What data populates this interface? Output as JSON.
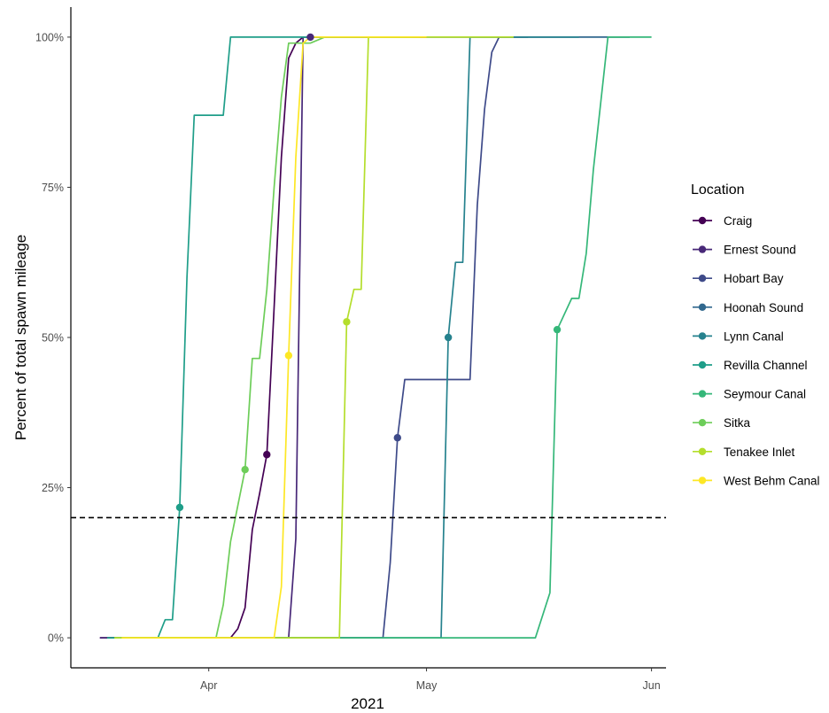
{
  "chart_data": {
    "type": "line",
    "title": "",
    "xlabel": "2021",
    "ylabel": "Percent of total spawn mileage",
    "x_ticks": [
      {
        "label": "Apr",
        "date": "2021-04-01"
      },
      {
        "label": "May",
        "date": "2021-05-01"
      },
      {
        "label": "Jun",
        "date": "2021-06-01"
      }
    ],
    "y_ticks": [
      {
        "label": "0%",
        "value": 0
      },
      {
        "label": "25%",
        "value": 25
      },
      {
        "label": "50%",
        "value": 50
      },
      {
        "label": "75%",
        "value": 75
      },
      {
        "label": "100%",
        "value": 100
      }
    ],
    "xlim": [
      "2021-03-13",
      "2021-06-03"
    ],
    "ylim": [
      -5,
      105
    ],
    "reference_line": {
      "y": 20,
      "style": "dashed",
      "color": "#000000"
    },
    "grid": false,
    "legend": {
      "title": "Location",
      "position": "right"
    },
    "series": [
      {
        "name": "Craig",
        "color": "#440154",
        "marker": {
          "x": "2021-04-09",
          "y": 30.5
        },
        "points": [
          [
            "2021-03-17",
            0
          ],
          [
            "2021-04-04",
            0
          ],
          [
            "2021-04-05",
            1.5
          ],
          [
            "2021-04-06",
            5
          ],
          [
            "2021-04-07",
            18
          ],
          [
            "2021-04-08",
            24
          ],
          [
            "2021-04-09",
            30.5
          ],
          [
            "2021-04-10",
            55
          ],
          [
            "2021-04-11",
            80
          ],
          [
            "2021-04-12",
            96.5
          ],
          [
            "2021-04-13",
            99
          ],
          [
            "2021-04-14",
            100
          ],
          [
            "2021-05-01",
            100
          ]
        ]
      },
      {
        "name": "Ernest Sound",
        "color": "#482878",
        "marker": {
          "x": "2021-04-15",
          "y": 100
        },
        "points": [
          [
            "2021-03-17",
            0
          ],
          [
            "2021-04-12",
            0
          ],
          [
            "2021-04-13",
            16.5
          ],
          [
            "2021-04-14",
            100
          ],
          [
            "2021-04-15",
            100
          ],
          [
            "2021-05-01",
            100
          ]
        ]
      },
      {
        "name": "Hobart Bay",
        "color": "#3E4A89",
        "marker": {
          "x": "2021-04-27",
          "y": 33.3
        },
        "points": [
          [
            "2021-03-20",
            0
          ],
          [
            "2021-04-25",
            0
          ],
          [
            "2021-04-26",
            12.5
          ],
          [
            "2021-04-27",
            33.3
          ],
          [
            "2021-04-28",
            43
          ],
          [
            "2021-05-07",
            43
          ],
          [
            "2021-05-08",
            72
          ],
          [
            "2021-05-09",
            88
          ],
          [
            "2021-05-10",
            97.5
          ],
          [
            "2021-05-11",
            100
          ],
          [
            "2021-05-15",
            100
          ]
        ]
      },
      {
        "name": "Hoonah Sound",
        "color": "#31688E",
        "marker": null,
        "points": [
          [
            "2021-04-27",
            100
          ],
          [
            "2021-05-29",
            100
          ]
        ]
      },
      {
        "name": "Lynn Canal",
        "color": "#26828E",
        "marker": {
          "x": "2021-05-04",
          "y": 50
        },
        "points": [
          [
            "2021-03-20",
            0
          ],
          [
            "2021-05-03",
            0
          ],
          [
            "2021-05-04",
            50
          ],
          [
            "2021-05-05",
            62.5
          ],
          [
            "2021-05-06",
            62.5
          ],
          [
            "2021-05-07",
            100
          ],
          [
            "2021-05-22",
            100
          ]
        ]
      },
      {
        "name": "Revilla Channel",
        "color": "#1F9E89",
        "marker": {
          "x": "2021-03-28",
          "y": 21.7
        },
        "points": [
          [
            "2021-03-18",
            0
          ],
          [
            "2021-03-25",
            0
          ],
          [
            "2021-03-26",
            3
          ],
          [
            "2021-03-27",
            3
          ],
          [
            "2021-03-28",
            21.7
          ],
          [
            "2021-03-29",
            60
          ],
          [
            "2021-03-30",
            87
          ],
          [
            "2021-04-03",
            87
          ],
          [
            "2021-04-04",
            100
          ],
          [
            "2021-04-29",
            100
          ]
        ]
      },
      {
        "name": "Seymour Canal",
        "color": "#35B779",
        "marker": {
          "x": "2021-05-19",
          "y": 51.3
        },
        "points": [
          [
            "2021-03-19",
            0
          ],
          [
            "2021-05-16",
            0
          ],
          [
            "2021-05-18",
            7.5
          ],
          [
            "2021-05-19",
            51.3
          ],
          [
            "2021-05-21",
            56.5
          ],
          [
            "2021-05-22",
            56.5
          ],
          [
            "2021-05-23",
            64
          ],
          [
            "2021-05-24",
            78
          ],
          [
            "2021-05-26",
            100
          ],
          [
            "2021-06-01",
            100
          ]
        ]
      },
      {
        "name": "Sitka",
        "color": "#6DCD59",
        "marker": {
          "x": "2021-04-06",
          "y": 28
        },
        "points": [
          [
            "2021-03-19",
            0
          ],
          [
            "2021-04-02",
            0
          ],
          [
            "2021-04-03",
            5.5
          ],
          [
            "2021-04-04",
            16
          ],
          [
            "2021-04-05",
            22
          ],
          [
            "2021-04-06",
            28
          ],
          [
            "2021-04-07",
            46.5
          ],
          [
            "2021-04-08",
            46.5
          ],
          [
            "2021-04-09",
            58
          ],
          [
            "2021-04-10",
            75
          ],
          [
            "2021-04-11",
            90
          ],
          [
            "2021-04-12",
            99
          ],
          [
            "2021-04-15",
            99
          ],
          [
            "2021-04-17",
            100
          ],
          [
            "2021-04-30",
            100
          ]
        ]
      },
      {
        "name": "Tenakee Inlet",
        "color": "#B4DE2C",
        "marker": {
          "x": "2021-04-20",
          "y": 52.6
        },
        "points": [
          [
            "2021-03-19",
            0
          ],
          [
            "2021-04-19",
            0
          ],
          [
            "2021-04-20",
            52.6
          ],
          [
            "2021-04-21",
            58
          ],
          [
            "2021-04-22",
            58
          ],
          [
            "2021-04-23",
            100
          ],
          [
            "2021-05-13",
            100
          ]
        ]
      },
      {
        "name": "West Behm Canal",
        "color": "#FDE725",
        "marker": {
          "x": "2021-04-12",
          "y": 47
        },
        "points": [
          [
            "2021-03-20",
            0
          ],
          [
            "2021-04-10",
            0
          ],
          [
            "2021-04-11",
            8.5
          ],
          [
            "2021-04-12",
            47
          ],
          [
            "2021-04-13",
            80
          ],
          [
            "2021-04-14",
            99
          ],
          [
            "2021-04-15",
            100
          ],
          [
            "2021-05-01",
            100
          ]
        ]
      }
    ]
  }
}
